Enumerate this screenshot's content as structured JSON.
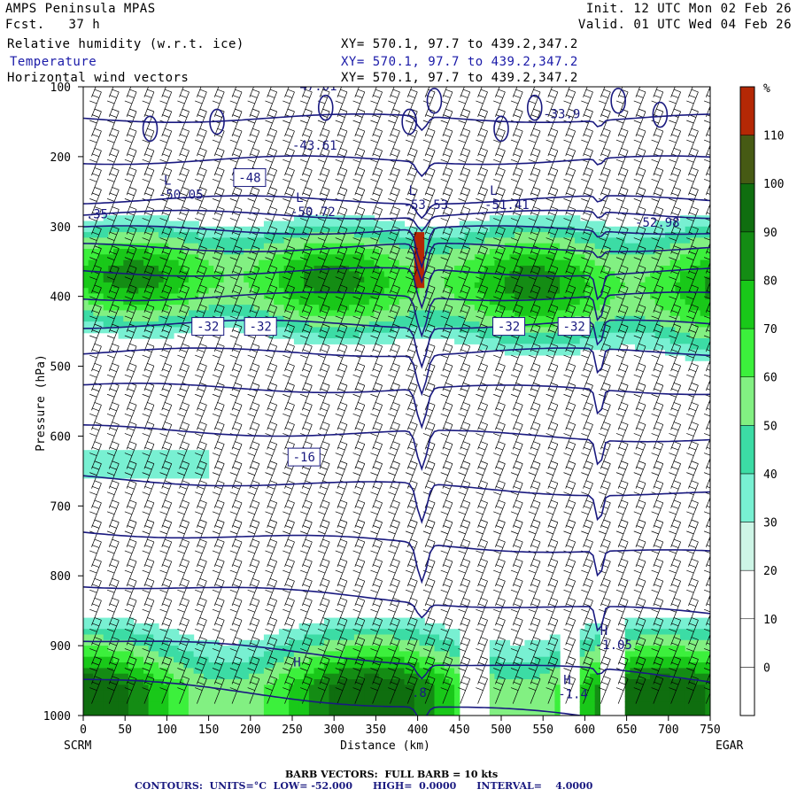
{
  "header": {
    "model": "AMPS Peninsula MPAS",
    "init_label": "Init.",
    "init_value": "12 UTC Mon 02 Feb 26",
    "fcst_label": "Fcst.",
    "fcst_value": "37 h",
    "valid_label": "Valid.",
    "valid_value": "01 UTC Wed 04 Feb 26"
  },
  "fields": [
    {
      "name": "Relative humidity (w.r.t. ice)",
      "xy": "XY= 570.1, 97.7 to 439.2,347.2",
      "color": "#000000"
    },
    {
      "name": "Temperature",
      "xy": "XY= 570.1, 97.7 to 439.2,347.2",
      "color": "#1a1aa8"
    },
    {
      "name": "Horizontal wind vectors",
      "xy": "XY= 570.1, 97.7 to 439.2,347.2",
      "color": "#000000"
    }
  ],
  "footer": {
    "barb_text": "BARB VECTORS:  FULL BARB = 10 kts",
    "contours_text": "CONTOURS:  UNITS=°C  LOW= -52.000      HIGH=  0.0000      INTERVAL=    4.0000"
  },
  "colors": {
    "contour": "#1a1a80",
    "barb": "#000000",
    "rh_scale": [
      "#ffffff",
      "#ffffff",
      "#ffffff",
      "#cdf5e6",
      "#78f0d2",
      "#3cdca5",
      "#82f082",
      "#3cf03c",
      "#19c819",
      "#148c14",
      "#0f6e0f",
      "#465a14",
      "#b42805"
    ]
  },
  "chart_data": {
    "type": "heatmap",
    "title": "",
    "xlabel": "Distance (km)",
    "ylabel": "Pressure (hPa)",
    "xlim": [
      0,
      750
    ],
    "ylim": [
      1000,
      100
    ],
    "x_ticks": [
      "0",
      "50",
      "100",
      "150",
      "200",
      "250",
      "300",
      "350",
      "400",
      "450",
      "500",
      "550",
      "600",
      "650",
      "700",
      "750"
    ],
    "y_ticks": [
      "100",
      "200",
      "300",
      "400",
      "500",
      "600",
      "700",
      "800",
      "900",
      "1000"
    ],
    "x_left_endpoint": "SCRM",
    "x_right_endpoint": "EGAR",
    "colorbar": {
      "unit": "%",
      "ticks": [
        "0",
        "10",
        "20",
        "30",
        "40",
        "50",
        "60",
        "70",
        "80",
        "90",
        "100",
        "110"
      ],
      "levels": [
        -10,
        0,
        10,
        20,
        30,
        40,
        50,
        60,
        70,
        80,
        90,
        100,
        110,
        120
      ]
    },
    "rh_bands": [
      {
        "p_top": 265,
        "p_bottom": 475,
        "rh_peak": 85
      },
      {
        "p_top": 815,
        "p_bottom": 1000,
        "rh_peak": 95
      }
    ],
    "temperature_contours_c": [
      -52,
      -48,
      -44,
      -40,
      -36,
      -32,
      -28,
      -24,
      -20,
      -16,
      -12,
      -8,
      -4,
      0
    ],
    "contour_labels": [
      {
        "text": "-48",
        "x": 180,
        "p": 230
      },
      {
        "text": "-32",
        "x": 130,
        "p": 443
      },
      {
        "text": "-32",
        "x": 193,
        "p": 443
      },
      {
        "text": "-32",
        "x": 490,
        "p": 443
      },
      {
        "text": "-32",
        "x": 568,
        "p": 443
      },
      {
        "text": "-16",
        "x": 245,
        "p": 630
      }
    ],
    "extrema": [
      {
        "type": "L",
        "value": "-50.05",
        "x": 90,
        "p": 255
      },
      {
        "type": "L",
        "value": "-50.72",
        "x": 248,
        "p": 280
      },
      {
        "type": "L",
        "value": "-53.53",
        "x": 383,
        "p": 270
      },
      {
        "type": "L",
        "value": "-51.41",
        "x": 480,
        "p": 270
      },
      {
        "type": "",
        "value": "-52.98",
        "x": 660,
        "p": 295
      },
      {
        "type": "",
        "value": "-43.61",
        "x": 250,
        "p": 185
      },
      {
        "type": "",
        "value": "-33.9",
        "x": 550,
        "p": 140
      },
      {
        "type": "",
        "value": "-47.01",
        "x": 250,
        "p": 100
      },
      {
        "type": "",
        "value": ".35",
        "x": 3,
        "p": 283
      },
      {
        "type": "H",
        "value": "-1.05",
        "x": 612,
        "p": 900
      },
      {
        "type": "H",
        "value": "-1.4",
        "x": 568,
        "p": 970
      },
      {
        "type": "H",
        "value": "",
        "x": 245,
        "p": 945
      },
      {
        "type": "",
        "value": ".8",
        "x": 393,
        "p": 968
      }
    ]
  }
}
